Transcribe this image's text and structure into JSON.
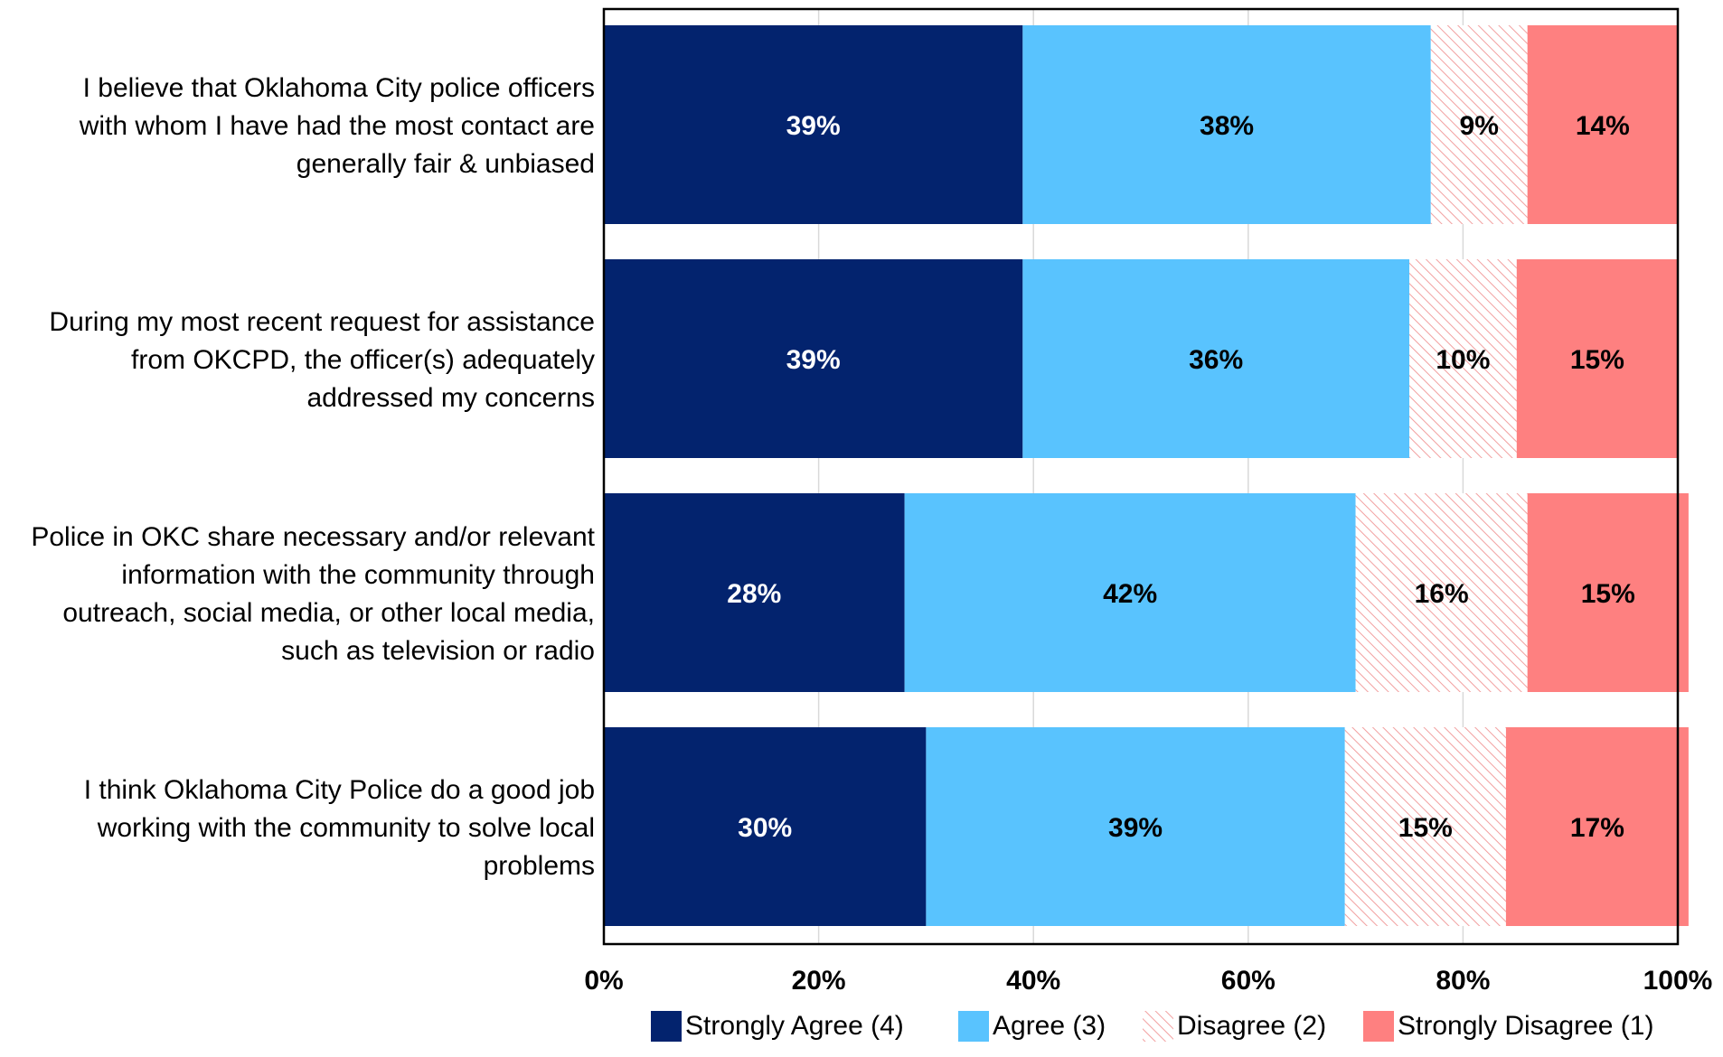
{
  "chart_data": {
    "type": "bar",
    "orientation": "horizontal",
    "stacked": true,
    "title": "",
    "xlabel": "",
    "ylabel": "",
    "xlim": [
      0,
      100
    ],
    "x_ticks": [
      "0%",
      "20%",
      "40%",
      "60%",
      "80%",
      "100%"
    ],
    "grid": "vertical",
    "legend_position": "bottom",
    "categories": [
      "I believe that Oklahoma City police officers with whom I have had the most contact are generally fair & unbiased",
      "During my most recent request for assistance from OKCPD, the officer(s) adequately addressed my concerns",
      "Police in OKC share necessary and/or relevant information with the community through outreach, social media, or other local media, such as television or radio",
      "I think Oklahoma City Police do a good job working with the community to solve local problems"
    ],
    "category_lines": [
      [
        "I believe that Oklahoma City police officers",
        "with whom I have had the most contact are",
        "generally fair & unbiased"
      ],
      [
        "During my most recent request for assistance",
        "from OKCPD, the officer(s) adequately",
        "addressed my concerns"
      ],
      [
        "Police in OKC share necessary and/or relevant",
        "information with the community through",
        "outreach, social media, or other local media,",
        "such as television or radio"
      ],
      [
        "I think Oklahoma City Police do a good job",
        "working with the community to solve local",
        "problems"
      ]
    ],
    "series": [
      {
        "name": "Strongly Agree (4)",
        "values": [
          39,
          39,
          28,
          30
        ],
        "labels": [
          "39%",
          "39%",
          "28%",
          "30%"
        ],
        "color": "#03236e",
        "label_color": "#ffffff",
        "pattern": "solid"
      },
      {
        "name": "Agree (3)",
        "values": [
          38,
          36,
          42,
          39
        ],
        "labels": [
          "38%",
          "36%",
          "42%",
          "39%"
        ],
        "color": "#59c3fe",
        "label_color": "#000000",
        "pattern": "solid"
      },
      {
        "name": "Disagree (2)",
        "values": [
          9,
          10,
          16,
          15
        ],
        "labels": [
          "9%",
          "10%",
          "16%",
          "15%"
        ],
        "color": "#f4a3a3",
        "label_color": "#000000",
        "pattern": "diagonal-hatch"
      },
      {
        "name": "Strongly Disagree (1)",
        "values": [
          14,
          15,
          15,
          17
        ],
        "labels": [
          "14%",
          "15%",
          "15%",
          "17%"
        ],
        "color": "#fe8080",
        "label_color": "#000000",
        "pattern": "solid"
      }
    ]
  }
}
